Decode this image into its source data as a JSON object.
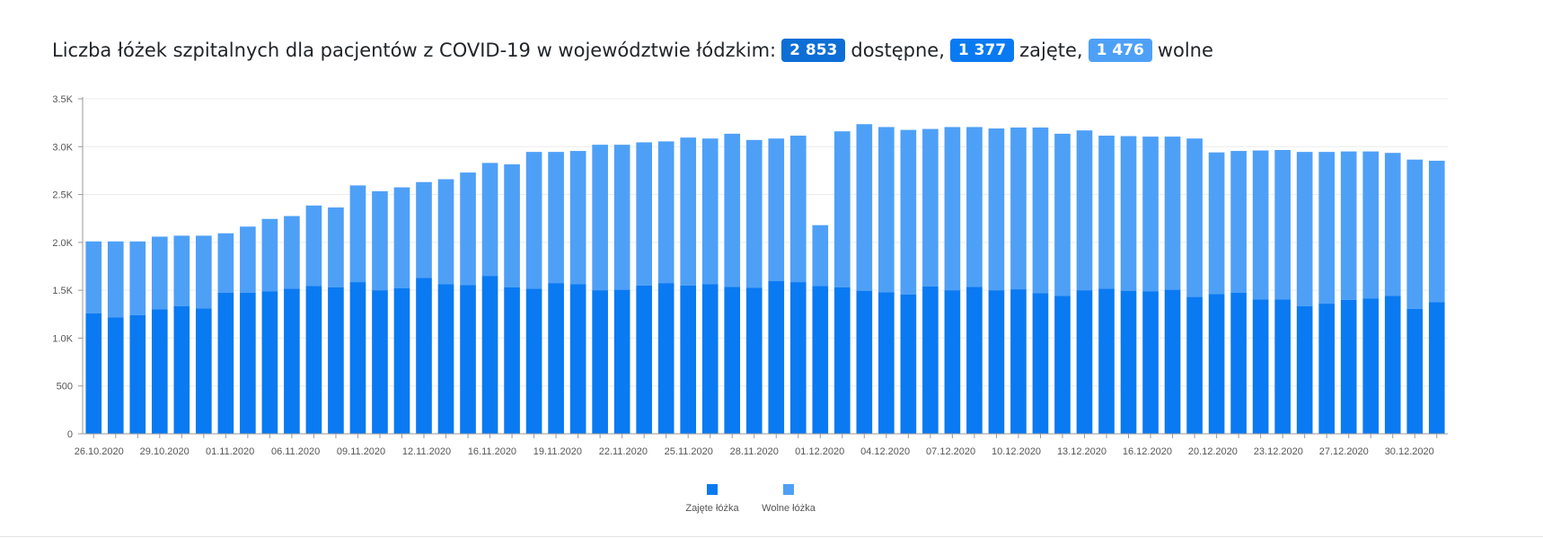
{
  "header": {
    "prefix": "Liczba łóżek szpitalnych dla pacjentów z COVID-19 w województwie łódzkim:",
    "available_value": "2 853",
    "available_label": "dostępne,",
    "occupied_value": "1 377",
    "occupied_label": "zajęte,",
    "free_value": "1 476",
    "free_label": "wolne"
  },
  "colors": {
    "badge_available": "#0d6ed6",
    "occupied": "#0a7af2",
    "free": "#4ea0f7",
    "axis_text": "#555555"
  },
  "chart_data": {
    "type": "bar",
    "stacked": true,
    "y_ticks": [
      "0",
      "500",
      "1.0K",
      "1.5K",
      "2.0K",
      "2.5K",
      "3.0K",
      "3.5K"
    ],
    "ylim": [
      0,
      3500
    ],
    "x_tick_labels": [
      "26.10.2020",
      "29.10.2020",
      "01.11.2020",
      "06.11.2020",
      "09.11.2020",
      "12.11.2020",
      "16.11.2020",
      "19.11.2020",
      "22.11.2020",
      "25.11.2020",
      "28.11.2020",
      "01.12.2020",
      "04.12.2020",
      "07.12.2020",
      "10.12.2020",
      "13.12.2020",
      "16.12.2020",
      "20.12.2020",
      "23.12.2020",
      "27.12.2020",
      "30.12.2020"
    ],
    "legend_position": "bottom-center",
    "grid": true,
    "series": [
      {
        "name": "Zajęte łóżka",
        "values": [
          1260,
          1215,
          1240,
          1300,
          1335,
          1310,
          1475,
          1475,
          1490,
          1515,
          1545,
          1530,
          1585,
          1500,
          1520,
          1630,
          1565,
          1555,
          1650,
          1530,
          1515,
          1575,
          1565,
          1500,
          1505,
          1550,
          1575,
          1550,
          1565,
          1535,
          1525,
          1595,
          1585,
          1545,
          1530,
          1495,
          1480,
          1455,
          1540,
          1500,
          1535,
          1500,
          1510,
          1470,
          1440,
          1500,
          1515,
          1495,
          1490,
          1505,
          1430,
          1460,
          1475,
          1405,
          1405,
          1335,
          1360,
          1400,
          1415,
          1440,
          1305,
          1377
        ]
      },
      {
        "name": "Wolne łóżka",
        "values": [
          750,
          795,
          770,
          760,
          735,
          760,
          620,
          690,
          755,
          760,
          840,
          835,
          1010,
          1035,
          1055,
          1000,
          1095,
          1175,
          1180,
          1285,
          1430,
          1370,
          1390,
          1520,
          1515,
          1495,
          1480,
          1545,
          1520,
          1600,
          1545,
          1490,
          1530,
          635,
          1630,
          1740,
          1725,
          1720,
          1645,
          1705,
          1670,
          1690,
          1690,
          1730,
          1695,
          1670,
          1600,
          1615,
          1615,
          1600,
          1655,
          1480,
          1480,
          1555,
          1560,
          1610,
          1585,
          1550,
          1535,
          1495,
          1560,
          1476
        ]
      }
    ]
  }
}
